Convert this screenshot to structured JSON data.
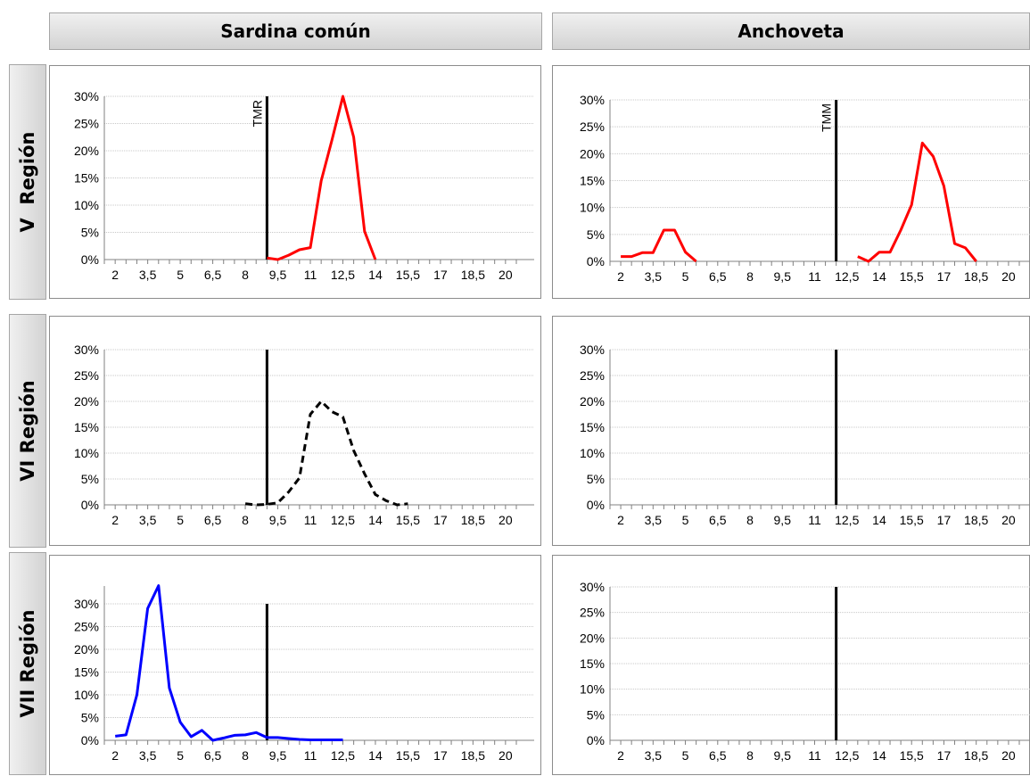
{
  "columns": [
    {
      "label": "Sardina común"
    },
    {
      "label": "Anchoveta"
    }
  ],
  "rows": [
    {
      "label": "V  Región"
    },
    {
      "label": "VI Región"
    },
    {
      "label": "VII Región"
    }
  ],
  "chart_data": [
    {
      "id": "sardina-v",
      "type": "line",
      "ylim": [
        0,
        0.3
      ],
      "yticks": [
        "0%",
        "5%",
        "10%",
        "15%",
        "20%",
        "25%",
        "30%"
      ],
      "xlim": [
        1.5,
        20.5
      ],
      "xticks": [
        "2",
        "3,5",
        "5",
        "6,5",
        "8",
        "9,5",
        "11",
        "12,5",
        "14",
        "15,5",
        "17",
        "18,5",
        "20"
      ],
      "ref_line": {
        "x": 9.0,
        "label": "TMR"
      },
      "series": [
        {
          "color": "#ff0000",
          "dashed": false,
          "x": [
            9,
            9.5,
            10,
            10.5,
            11,
            11.5,
            12,
            12.5,
            13,
            13.5,
            14
          ],
          "y": [
            0.003,
            0.0,
            0.008,
            0.018,
            0.022,
            0.145,
            0.22,
            0.3,
            0.225,
            0.052,
            0.0
          ]
        }
      ]
    },
    {
      "id": "anchoveta-v",
      "type": "line",
      "ylim": [
        0,
        0.3
      ],
      "yticks": [
        "0%",
        "5%",
        "10%",
        "15%",
        "20%",
        "25%",
        "30%"
      ],
      "xlim": [
        1.5,
        20.5
      ],
      "xticks": [
        "2",
        "3,5",
        "5",
        "6,5",
        "8",
        "9,5",
        "11",
        "12,5",
        "14",
        "15,5",
        "17",
        "18,5",
        "20"
      ],
      "ref_line": {
        "x": 12.0,
        "label": "TMM"
      },
      "series": [
        {
          "color": "#ff0000",
          "dashed": false,
          "x": [
            2,
            2.5,
            3,
            3.5,
            4,
            4.5,
            5,
            5.5
          ],
          "y": [
            0.009,
            0.009,
            0.016,
            0.016,
            0.058,
            0.058,
            0.017,
            0.0
          ]
        },
        {
          "color": "#ff0000",
          "dashed": false,
          "x": [
            13,
            13.5,
            14,
            14.5,
            15,
            15.5,
            16,
            16.5,
            17,
            17.5,
            18,
            18.5
          ],
          "y": [
            0.009,
            0.0,
            0.017,
            0.017,
            0.058,
            0.105,
            0.22,
            0.195,
            0.14,
            0.033,
            0.025,
            0.0
          ]
        }
      ]
    },
    {
      "id": "sardina-vi",
      "type": "line",
      "ylim": [
        0,
        0.3
      ],
      "yticks": [
        "0%",
        "5%",
        "10%",
        "15%",
        "20%",
        "25%",
        "30%"
      ],
      "xlim": [
        1.5,
        20.5
      ],
      "xticks": [
        "2",
        "3,5",
        "5",
        "6,5",
        "8",
        "9,5",
        "11",
        "12,5",
        "14",
        "15,5",
        "17",
        "18,5",
        "20"
      ],
      "ref_line": {
        "x": 9.0,
        "label": ""
      },
      "series": [
        {
          "color": "#000000",
          "dashed": true,
          "x": [
            8,
            8.5,
            9,
            9.5,
            10,
            10.5,
            11,
            11.5,
            12,
            12.5,
            13,
            13.5,
            14,
            14.5,
            15,
            15.5
          ],
          "y": [
            0.002,
            0.0,
            0.001,
            0.004,
            0.025,
            0.052,
            0.175,
            0.2,
            0.18,
            0.17,
            0.105,
            0.06,
            0.02,
            0.008,
            0.0,
            0.002
          ]
        }
      ]
    },
    {
      "id": "anchoveta-vi",
      "type": "line",
      "ylim": [
        0,
        0.3
      ],
      "yticks": [
        "0%",
        "5%",
        "10%",
        "15%",
        "20%",
        "25%",
        "30%"
      ],
      "xlim": [
        1.5,
        20.5
      ],
      "xticks": [
        "2",
        "3,5",
        "5",
        "6,5",
        "8",
        "9,5",
        "11",
        "12,5",
        "14",
        "15,5",
        "17",
        "18,5",
        "20"
      ],
      "ref_line": {
        "x": 12.0,
        "label": ""
      },
      "series": []
    },
    {
      "id": "sardina-vii",
      "type": "line",
      "ylim": [
        0,
        0.3
      ],
      "yticks": [
        "0%",
        "5%",
        "10%",
        "15%",
        "20%",
        "25%",
        "30%"
      ],
      "xlim": [
        1.5,
        20.5
      ],
      "xticks": [
        "2",
        "3,5",
        "5",
        "6,5",
        "8",
        "9,5",
        "11",
        "12,5",
        "14",
        "15,5",
        "17",
        "18,5",
        "20"
      ],
      "ref_line": {
        "x": 9.0,
        "label": ""
      },
      "series": [
        {
          "color": "#0000ff",
          "dashed": false,
          "x": [
            2,
            2.5,
            3,
            3.5,
            4,
            4.5,
            5,
            5.5,
            6,
            6.5,
            7,
            7.5,
            8,
            8.5,
            9,
            9.5,
            10,
            10.5,
            11,
            11.5,
            12,
            12.5
          ],
          "y": [
            0.009,
            0.012,
            0.1,
            0.29,
            0.34,
            0.115,
            0.04,
            0.008,
            0.022,
            0.0,
            0.005,
            0.011,
            0.012,
            0.017,
            0.006,
            0.006,
            0.004,
            0.002,
            0.001,
            0.001,
            0.001,
            0.001
          ]
        }
      ]
    },
    {
      "id": "anchoveta-vii",
      "type": "line",
      "ylim": [
        0,
        0.3
      ],
      "yticks": [
        "0%",
        "5%",
        "10%",
        "15%",
        "20%",
        "25%",
        "30%"
      ],
      "xlim": [
        1.5,
        20.5
      ],
      "xticks": [
        "2",
        "3,5",
        "5",
        "6,5",
        "8",
        "9,5",
        "11",
        "12,5",
        "14",
        "15,5",
        "17",
        "18,5",
        "20"
      ],
      "ref_line": {
        "x": 12.0,
        "label": ""
      },
      "series": []
    }
  ]
}
